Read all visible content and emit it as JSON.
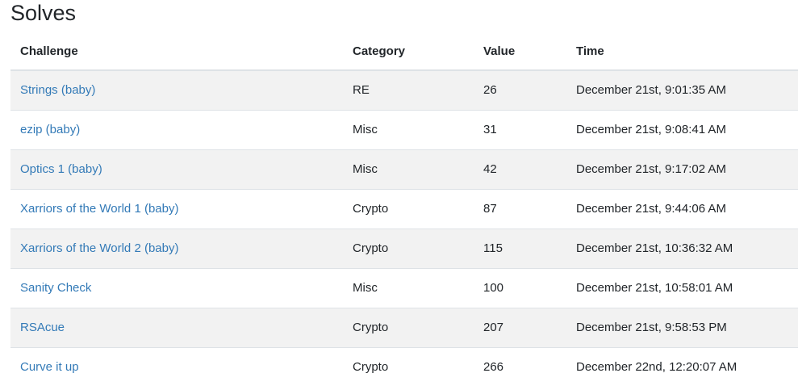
{
  "page": {
    "title": "Solves"
  },
  "table": {
    "headers": {
      "challenge": "Challenge",
      "category": "Category",
      "value": "Value",
      "time": "Time"
    },
    "rows": [
      {
        "challenge": "Strings (baby)",
        "category": "RE",
        "value": "26",
        "time": "December 21st, 9:01:35 AM"
      },
      {
        "challenge": "ezip (baby)",
        "category": "Misc",
        "value": "31",
        "time": "December 21st, 9:08:41 AM"
      },
      {
        "challenge": "Optics 1 (baby)",
        "category": "Misc",
        "value": "42",
        "time": "December 21st, 9:17:02 AM"
      },
      {
        "challenge": "Xarriors of the World 1 (baby)",
        "category": "Crypto",
        "value": "87",
        "time": "December 21st, 9:44:06 AM"
      },
      {
        "challenge": "Xarriors of the World 2 (baby)",
        "category": "Crypto",
        "value": "115",
        "time": "December 21st, 10:36:32 AM"
      },
      {
        "challenge": "Sanity Check",
        "category": "Misc",
        "value": "100",
        "time": "December 21st, 10:58:01 AM"
      },
      {
        "challenge": "RSAcue",
        "category": "Crypto",
        "value": "207",
        "time": "December 21st, 9:58:53 PM"
      },
      {
        "challenge": "Curve it up",
        "category": "Crypto",
        "value": "266",
        "time": "December 22nd, 12:20:07 AM"
      }
    ]
  },
  "colors": {
    "link": "#337ab7",
    "stripe": "#f2f2f2",
    "text": "#212529",
    "border": "#dee2e6"
  }
}
